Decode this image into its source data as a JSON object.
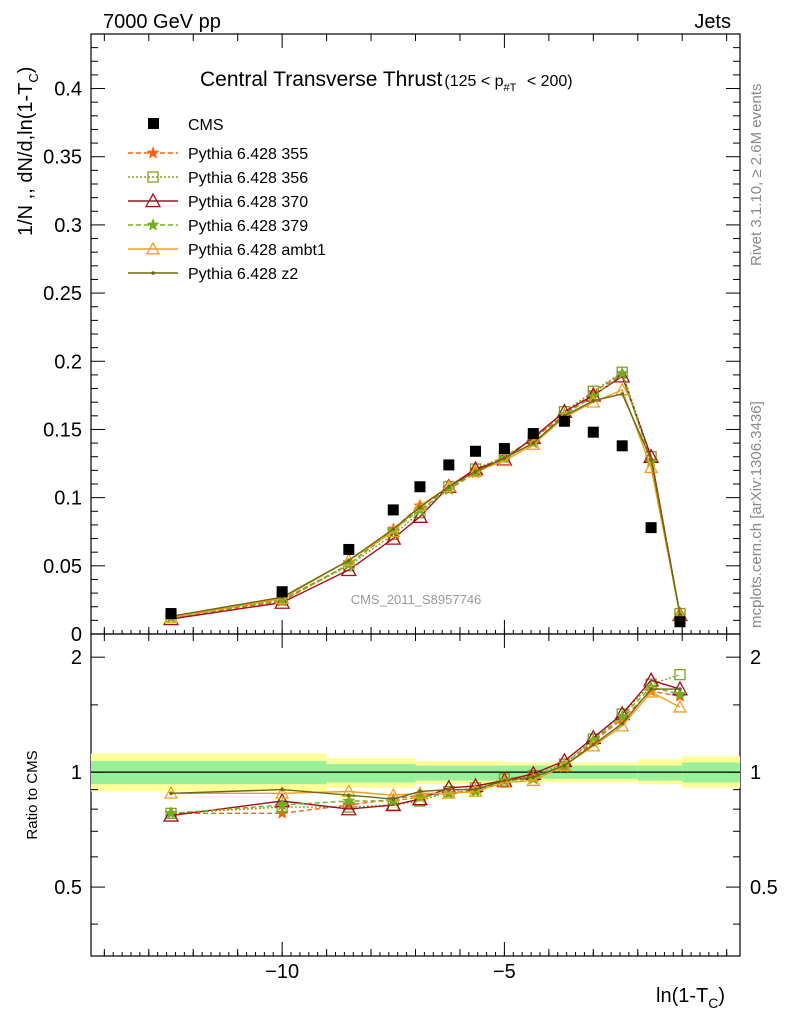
{
  "header": {
    "energy": "7000 GeV pp",
    "process": "Jets",
    "rivet": "Rivet 3.1.10, ≥ 2.6M events",
    "source": "mcplots.cern.ch [arXiv:1306.3436]",
    "watermark": "CMS_2011_S8957746"
  },
  "chart_data": {
    "type": "line",
    "title": "Central Transverse Thrust",
    "title_cut": "(125 < p",
    "title_cut_sub": "#T",
    "title_cut_end": " < 200)",
    "ylabel": "1/N ,, dN/d,ln(1-T",
    "ylabel_sub": "C",
    "ylabel_end": ")",
    "xlabel": "ln(1-T",
    "xlabel_sub": "C",
    "xlabel_end": ")",
    "ratio_ylabel": "Ratio to CMS",
    "xlim": [
      -14.3,
      0.3
    ],
    "ylim": [
      0,
      0.44
    ],
    "ratio_ylim": [
      0.33,
      2.3
    ],
    "grid": false,
    "legend_position": "top-left",
    "main_y_ticks": [
      "0",
      "0.05",
      "0.1",
      "0.15",
      "0.2",
      "0.25",
      "0.3",
      "0.35",
      "0.4"
    ],
    "x_ticks": [
      "−10",
      "−5"
    ],
    "ratio_y_ticks": [
      "0.5",
      "1",
      "2"
    ],
    "x": [
      -12.5,
      -10.0,
      -8.5,
      -7.5,
      -6.9,
      -6.25,
      -5.65,
      -5.0,
      -4.35,
      -3.65,
      -3.0,
      -2.35,
      -1.7,
      -1.05
    ],
    "cms": [
      0.015,
      0.031,
      0.062,
      0.091,
      0.108,
      0.124,
      0.134,
      0.136,
      0.147,
      0.156,
      0.148,
      0.138,
      0.078,
      0.009
    ],
    "band_edges": [
      -14.3,
      -9.0,
      -7.0,
      -5.0,
      -2.0,
      -1.0,
      0.3
    ],
    "band_inner": [
      [
        0.93,
        1.07
      ],
      [
        0.94,
        1.05
      ],
      [
        0.95,
        1.04
      ],
      [
        0.96,
        1.04
      ],
      [
        0.95,
        1.04
      ],
      [
        0.94,
        1.06
      ]
    ],
    "band_outer": [
      [
        0.89,
        1.12
      ],
      [
        0.91,
        1.09
      ],
      [
        0.93,
        1.07
      ],
      [
        0.94,
        1.06
      ],
      [
        0.93,
        1.08
      ],
      [
        0.91,
        1.1
      ]
    ],
    "series": [
      {
        "name": "Pythia 6.428 355",
        "color": "#ff6010",
        "dash": "5,3",
        "marker": "star",
        "values": [
          0.012,
          0.024,
          0.051,
          0.077,
          0.094,
          0.106,
          0.12,
          0.13,
          0.143,
          0.161,
          0.177,
          0.191,
          0.127,
          0.014
        ],
        "ratio": [
          0.78,
          0.78,
          0.82,
          0.85,
          0.87,
          0.88,
          0.9,
          0.95,
          0.97,
          1.03,
          1.2,
          1.38,
          1.63,
          1.58
        ]
      },
      {
        "name": "Pythia 6.428 356",
        "color": "#80a020",
        "dash": "2,2",
        "marker": "square",
        "values": [
          0.012,
          0.025,
          0.05,
          0.073,
          0.089,
          0.108,
          0.121,
          0.13,
          0.143,
          0.163,
          0.178,
          0.192,
          0.13,
          0.015
        ],
        "ratio": [
          0.78,
          0.81,
          0.81,
          0.82,
          0.84,
          0.89,
          0.91,
          0.96,
          0.98,
          1.05,
          1.22,
          1.42,
          1.7,
          1.8
        ]
      },
      {
        "name": "Pythia 6.428 370",
        "color": "#a01020",
        "dash": "",
        "marker": "triangle",
        "values": [
          0.011,
          0.023,
          0.047,
          0.07,
          0.086,
          0.108,
          0.121,
          0.128,
          0.144,
          0.163,
          0.175,
          0.189,
          0.13,
          0.014
        ],
        "ratio": [
          0.77,
          0.84,
          0.8,
          0.82,
          0.85,
          0.91,
          0.92,
          0.95,
          0.99,
          1.07,
          1.23,
          1.42,
          1.74,
          1.65
        ]
      },
      {
        "name": "Pythia 6.428 379",
        "color": "#70b020",
        "dash": "5,3",
        "marker": "star",
        "values": [
          0.012,
          0.025,
          0.051,
          0.076,
          0.091,
          0.106,
          0.118,
          0.129,
          0.14,
          0.161,
          0.174,
          0.191,
          0.126,
          0.014
        ],
        "ratio": [
          0.78,
          0.82,
          0.84,
          0.84,
          0.86,
          0.88,
          0.89,
          0.95,
          0.96,
          1.05,
          1.21,
          1.4,
          1.67,
          1.6
        ]
      },
      {
        "name": "Pythia 6.428 ambt1",
        "color": "#f0a020",
        "dash": "",
        "marker": "triangle-open",
        "values": [
          0.012,
          0.026,
          0.054,
          0.075,
          0.094,
          0.108,
          0.119,
          0.127,
          0.139,
          0.159,
          0.17,
          0.179,
          0.122,
          0.014
        ],
        "ratio": [
          0.88,
          0.88,
          0.89,
          0.87,
          0.88,
          0.88,
          0.89,
          0.94,
          0.95,
          1.04,
          1.17,
          1.32,
          1.62,
          1.48
        ]
      },
      {
        "name": "Pythia 6.428 z2",
        "color": "#6a6a10",
        "dash": "",
        "marker": "dot",
        "values": [
          0.013,
          0.027,
          0.054,
          0.077,
          0.093,
          0.108,
          0.119,
          0.129,
          0.14,
          0.16,
          0.171,
          0.176,
          0.128,
          0.014
        ],
        "ratio": [
          0.88,
          0.9,
          0.87,
          0.85,
          0.89,
          0.9,
          0.9,
          0.95,
          0.97,
          1.04,
          1.18,
          1.34,
          1.65,
          1.65
        ]
      }
    ],
    "cms_name": "CMS"
  }
}
